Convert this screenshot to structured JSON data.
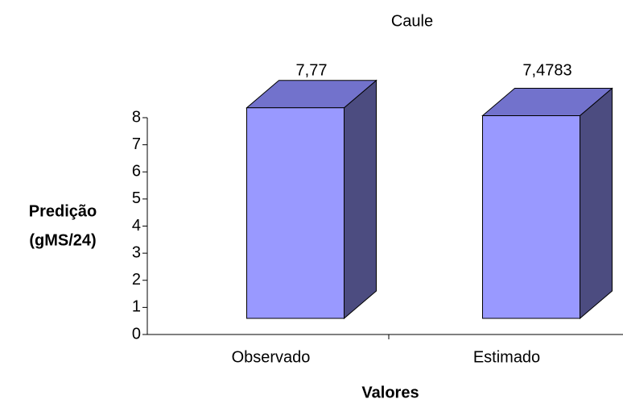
{
  "chart_data": {
    "type": "bar3d",
    "title": "Caule",
    "y_label": [
      "Predição",
      "(gMS/24)"
    ],
    "x_label": "Valores",
    "categories": [
      "Observado",
      "Estimado"
    ],
    "values": [
      7.77,
      7.4783
    ],
    "value_labels": [
      "7,77",
      "7,4783"
    ],
    "colors": {
      "front": "#9999ff",
      "top": "#7272cc",
      "side": "#4c4c80"
    },
    "ylim": [
      0,
      8
    ],
    "yticks": [
      0,
      1,
      2,
      3,
      4,
      5,
      6,
      7,
      8
    ]
  }
}
